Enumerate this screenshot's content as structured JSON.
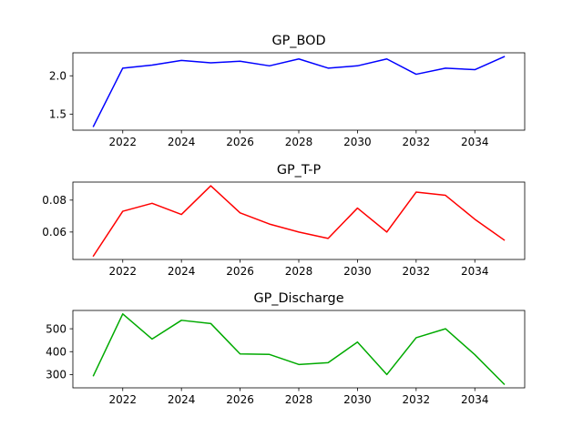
{
  "chart_data": [
    {
      "type": "line",
      "title": "GP_BOD",
      "xlabel": "",
      "ylabel": "",
      "x": [
        2021,
        2022,
        2023,
        2024,
        2025,
        2026,
        2027,
        2028,
        2029,
        2030,
        2031,
        2032,
        2033,
        2034,
        2035
      ],
      "xlim": [
        2020.3,
        2035.7
      ],
      "ylim": [
        1.29,
        2.3
      ],
      "xticks": [
        2022,
        2024,
        2026,
        2028,
        2030,
        2032,
        2034
      ],
      "yticks": [
        1.5,
        2.0
      ],
      "ytick_labels": [
        "1.5",
        "2.0"
      ],
      "grid": false,
      "series": [
        {
          "color": "#0000ff",
          "values": [
            1.34,
            2.1,
            2.14,
            2.2,
            2.17,
            2.19,
            2.13,
            2.22,
            2.1,
            2.13,
            2.22,
            2.02,
            2.1,
            2.08,
            2.25
          ]
        }
      ]
    },
    {
      "type": "line",
      "title": "GP_T-P",
      "xlabel": "",
      "ylabel": "",
      "x": [
        2021,
        2022,
        2023,
        2024,
        2025,
        2026,
        2027,
        2028,
        2029,
        2030,
        2031,
        2032,
        2033,
        2034,
        2035
      ],
      "xlim": [
        2020.3,
        2035.7
      ],
      "ylim": [
        0.0428,
        0.0913
      ],
      "xticks": [
        2022,
        2024,
        2026,
        2028,
        2030,
        2032,
        2034
      ],
      "yticks": [
        0.06,
        0.08
      ],
      "ytick_labels": [
        "0.06",
        "0.08"
      ],
      "grid": false,
      "series": [
        {
          "color": "#ff0000",
          "values": [
            0.045,
            0.073,
            0.078,
            0.071,
            0.089,
            0.072,
            0.065,
            0.06,
            0.056,
            0.075,
            0.06,
            0.085,
            0.083,
            0.068,
            0.055
          ]
        }
      ]
    },
    {
      "type": "line",
      "title": "GP_Discharge",
      "xlabel": "",
      "ylabel": "",
      "x": [
        2021,
        2022,
        2023,
        2024,
        2025,
        2026,
        2027,
        2028,
        2029,
        2030,
        2031,
        2032,
        2033,
        2034,
        2035
      ],
      "xlim": [
        2020.3,
        2035.7
      ],
      "ylim": [
        242,
        580
      ],
      "xticks": [
        2022,
        2024,
        2026,
        2028,
        2030,
        2032,
        2034
      ],
      "yticks": [
        300,
        400,
        500
      ],
      "ytick_labels": [
        "300",
        "400",
        "500"
      ],
      "grid": false,
      "series": [
        {
          "color": "#00aa00",
          "values": [
            295,
            565,
            455,
            537,
            523,
            390,
            388,
            344,
            352,
            442,
            300,
            461,
            500,
            387,
            258
          ]
        }
      ]
    }
  ]
}
